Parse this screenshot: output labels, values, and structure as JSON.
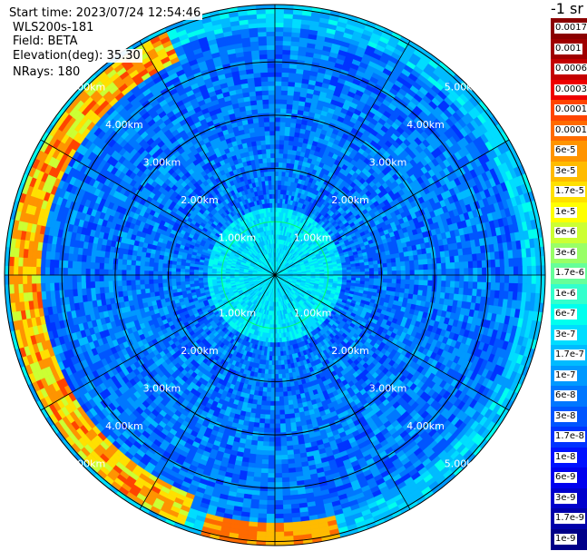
{
  "header": {
    "start_time": "Start time: 2023/07/24 12:54:46",
    "instrument": "WLS200s-181",
    "field": "Field: BETA",
    "elevation": "Elevation(deg): 35.30",
    "nrays": "NRays: 180"
  },
  "chart_data": {
    "type": "heatmap",
    "projection": "polar-ppi",
    "rings_km": [
      1,
      2,
      3,
      4,
      5
    ],
    "ring_labels": [
      "1.00km",
      "2.00km",
      "3.00km",
      "4.00km",
      "5.00km"
    ],
    "max_range_km": 5.0,
    "spokes_deg": [
      0,
      30,
      60,
      90,
      120,
      150,
      180,
      210,
      240,
      270,
      300,
      330
    ],
    "colorbar": {
      "unit_label": "-1 sr",
      "tick_labels": [
        "0.0017",
        "0.001",
        "0.0006",
        "0.0003",
        "0.00017",
        "0.0001",
        "6e-5",
        "3e-5",
        "1.7e-5",
        "1e-5",
        "6e-6",
        "3e-6",
        "1.7e-6",
        "1e-6",
        "6e-7",
        "3e-7",
        "1.7e-7",
        "1e-7",
        "6e-8",
        "3e-8",
        "1.7e-8",
        "1e-8",
        "6e-9",
        "3e-9",
        "1.7e-9",
        "1e-9"
      ],
      "colors": [
        "#8b0000",
        "#a00000",
        "#c40000",
        "#ee0000",
        "#ff4400",
        "#ff6a00",
        "#ff9400",
        "#ffbb00",
        "#ffe000",
        "#ffff00",
        "#ccff33",
        "#99ff66",
        "#66ff99",
        "#33ffcc",
        "#00ffee",
        "#00ddff",
        "#00bbff",
        "#0099ff",
        "#0077ff",
        "#0055ff",
        "#0033ff",
        "#0011ff",
        "#0000ee",
        "#0000cc",
        "#0000aa",
        "#000088"
      ]
    }
  }
}
